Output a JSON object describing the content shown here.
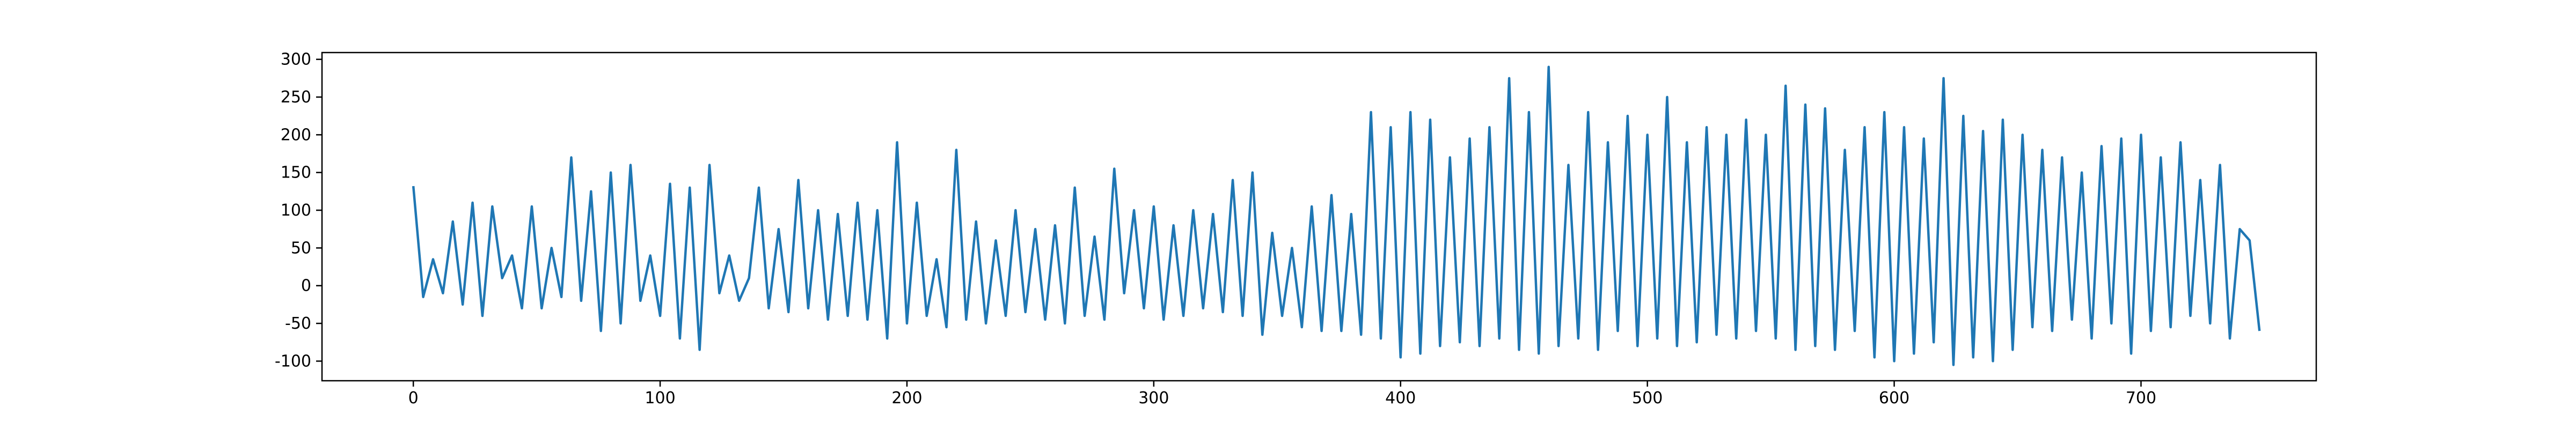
{
  "chart_data": {
    "type": "line",
    "x": [
      0,
      4,
      8,
      12,
      16,
      20,
      24,
      28,
      32,
      36,
      40,
      44,
      48,
      52,
      56,
      60,
      64,
      68,
      72,
      76,
      80,
      84,
      88,
      92,
      96,
      100,
      104,
      108,
      112,
      116,
      120,
      124,
      128,
      132,
      136,
      140,
      144,
      148,
      152,
      156,
      160,
      164,
      168,
      172,
      176,
      180,
      184,
      188,
      192,
      196,
      200,
      204,
      208,
      212,
      216,
      220,
      224,
      228,
      232,
      236,
      240,
      244,
      248,
      252,
      256,
      260,
      264,
      268,
      272,
      276,
      280,
      284,
      288,
      292,
      296,
      300,
      304,
      308,
      312,
      316,
      320,
      324,
      328,
      332,
      336,
      340,
      344,
      348,
      352,
      356,
      360,
      364,
      368,
      372,
      376,
      380,
      384,
      388,
      392,
      396,
      400,
      404,
      408,
      412,
      416,
      420,
      424,
      428,
      432,
      436,
      440,
      444,
      448,
      452,
      456,
      460,
      464,
      468,
      472,
      476,
      480,
      484,
      488,
      492,
      496,
      500,
      504,
      508,
      512,
      516,
      520,
      524,
      528,
      532,
      536,
      540,
      544,
      548,
      552,
      556,
      560,
      564,
      568,
      572,
      576,
      580,
      584,
      588,
      592,
      596,
      600,
      604,
      608,
      612,
      616,
      620,
      624,
      628,
      632,
      636,
      640,
      644,
      648,
      652,
      656,
      660,
      664,
      668,
      672,
      676,
      680,
      684,
      688,
      692,
      696,
      700,
      704,
      708,
      712,
      716,
      720,
      724,
      728,
      732,
      736,
      740,
      744,
      748
    ],
    "series": [
      {
        "color": "#1f77b4",
        "values": [
          132,
          -15,
          35,
          -10,
          85,
          -25,
          110,
          -40,
          105,
          10,
          40,
          -30,
          105,
          -30,
          50,
          -15,
          170,
          -20,
          125,
          -60,
          150,
          -50,
          160,
          -20,
          40,
          -40,
          135,
          -70,
          130,
          -85,
          160,
          -10,
          40,
          -20,
          10,
          130,
          -30,
          75,
          -35,
          140,
          -30,
          100,
          -45,
          95,
          -40,
          110,
          -45,
          100,
          -70,
          190,
          -50,
          110,
          -40,
          35,
          -55,
          180,
          -45,
          85,
          -50,
          60,
          -40,
          100,
          -35,
          75,
          -45,
          80,
          -50,
          130,
          -40,
          65,
          -45,
          155,
          -10,
          100,
          -30,
          105,
          -45,
          80,
          -40,
          100,
          -30,
          95,
          -35,
          140,
          -40,
          150,
          -65,
          70,
          -40,
          50,
          -55,
          105,
          -60,
          120,
          -60,
          95,
          -65,
          230,
          -70,
          210,
          -95,
          230,
          -90,
          220,
          -80,
          170,
          -75,
          195,
          -80,
          210,
          -70,
          275,
          -85,
          230,
          -90,
          290,
          -80,
          160,
          -70,
          230,
          -85,
          190,
          -60,
          225,
          -80,
          200,
          -70,
          250,
          -80,
          190,
          -75,
          210,
          -65,
          200,
          -70,
          220,
          -60,
          200,
          -70,
          265,
          -85,
          240,
          -80,
          235,
          -85,
          180,
          -60,
          210,
          -95,
          230,
          -100,
          210,
          -90,
          195,
          -75,
          275,
          -105,
          225,
          -95,
          205,
          -100,
          220,
          -85,
          200,
          -55,
          180,
          -60,
          170,
          -45,
          150,
          -70,
          185,
          -50,
          195,
          -90,
          200,
          -60,
          170,
          -55,
          190,
          -40,
          140,
          -50,
          160,
          -70,
          75,
          60,
          -60
        ]
      }
    ],
    "xlim": [
      -37,
      771
    ],
    "ylim": [
      -126,
      309
    ],
    "xticks": [
      0,
      100,
      200,
      300,
      400,
      500,
      600,
      700
    ],
    "yticks": [
      -100,
      -50,
      0,
      50,
      100,
      150,
      200,
      250,
      300
    ]
  }
}
